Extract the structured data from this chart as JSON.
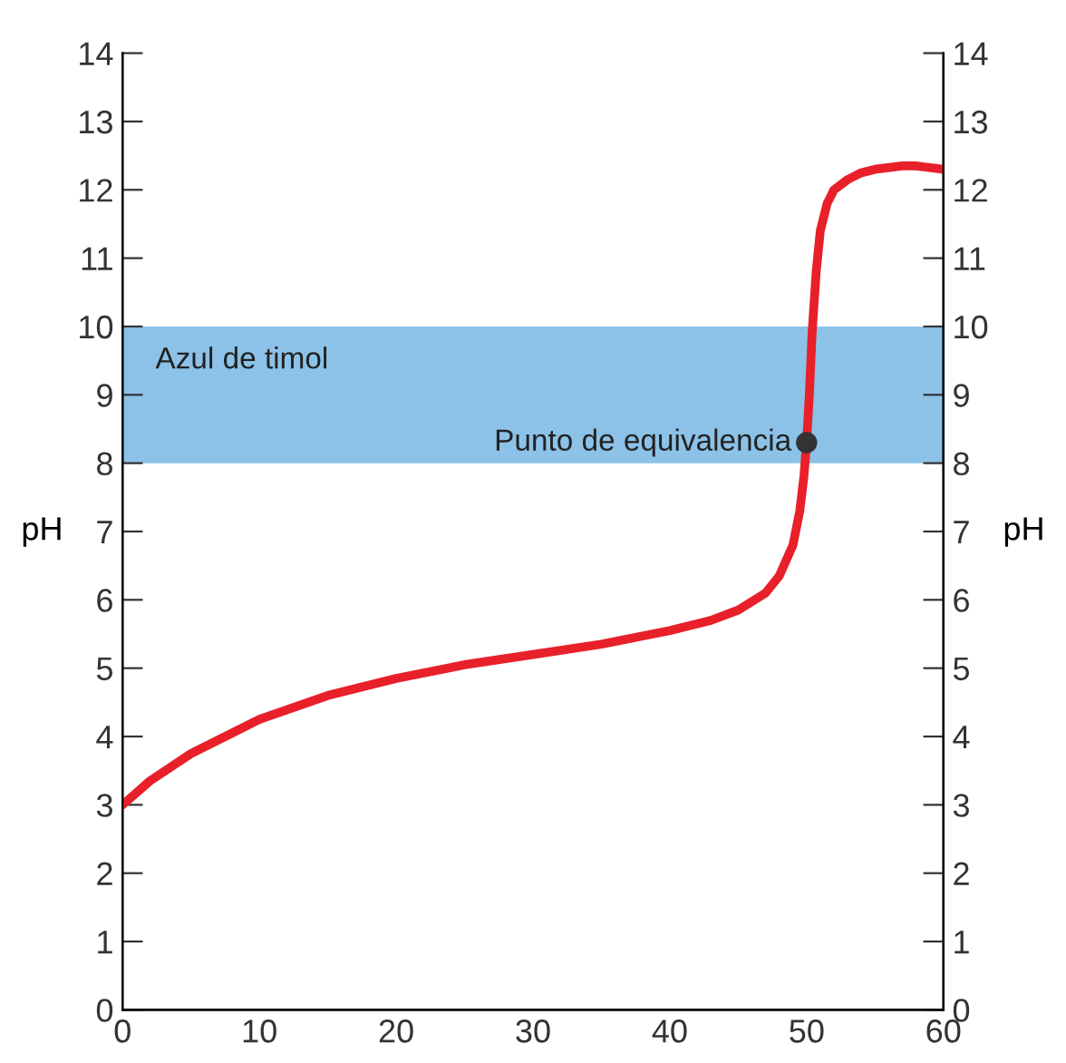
{
  "chart_data": {
    "type": "line",
    "ylabel": "pH",
    "y2label": "pH",
    "xlim": [
      0,
      60
    ],
    "xticks": [
      0,
      10,
      20,
      30,
      40,
      50,
      60
    ],
    "ylim": [
      0,
      14
    ],
    "yticks": [
      0,
      1,
      2,
      3,
      4,
      5,
      6,
      7,
      8,
      9,
      10,
      11,
      12,
      13,
      14
    ],
    "y2lim": [
      0,
      14
    ],
    "y2ticks": [
      0,
      1,
      2,
      3,
      4,
      5,
      6,
      7,
      8,
      9,
      10,
      11,
      12,
      13,
      14
    ],
    "grid": false,
    "legend": false,
    "series": [
      {
        "color": "#e8202a",
        "x": [
          0,
          2,
          5,
          10,
          15,
          20,
          25,
          30,
          35,
          40,
          43,
          45,
          47,
          48,
          49,
          49.5,
          49.8,
          50,
          50.2,
          50.4,
          50.7,
          51,
          51.5,
          52,
          53,
          54,
          55,
          57,
          58,
          60
        ],
        "values": [
          3.0,
          3.35,
          3.75,
          4.25,
          4.6,
          4.85,
          5.05,
          5.2,
          5.35,
          5.55,
          5.7,
          5.85,
          6.1,
          6.35,
          6.8,
          7.3,
          7.8,
          8.3,
          9.0,
          9.9,
          10.8,
          11.4,
          11.8,
          12.0,
          12.15,
          12.25,
          12.3,
          12.35,
          12.35,
          12.3
        ]
      },
      {
        "type": "scatter",
        "color": "#333333",
        "x": [
          50
        ],
        "values": [
          8.3
        ]
      }
    ],
    "bands": [
      {
        "axis": "y",
        "from": 8,
        "to": 10,
        "label": "Azul de timol",
        "color": "#2e8fd6"
      }
    ],
    "annotations": [
      {
        "text": "Punto de equivalencia",
        "x": 50,
        "y": 8.3
      }
    ]
  }
}
